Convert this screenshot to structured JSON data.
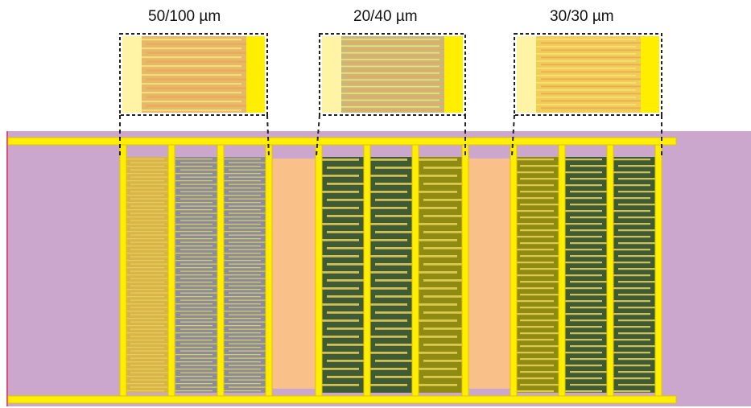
{
  "insets": [
    {
      "label": "50/100 µm"
    },
    {
      "label": "20/40 µm"
    },
    {
      "label": "30/30 µm"
    }
  ],
  "colors": {
    "substrate": "#cba6cd",
    "rail": "#ffee00",
    "rail_edge": "#e0c400",
    "comb_light": "#fff3a6",
    "gap_fill": "#f9c08a",
    "pattern_gray": "#8b8e9a",
    "pattern_green": "#3f5b36",
    "pattern_olive": "#8f8a12",
    "finger": "#e8d35a",
    "connector": "#222222"
  }
}
